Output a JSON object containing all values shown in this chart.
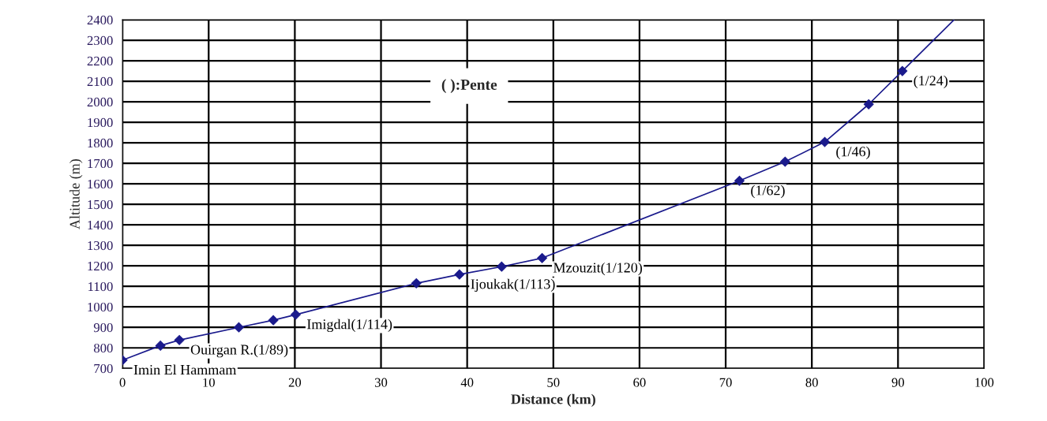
{
  "chart_data": {
    "type": "line",
    "xlabel": "Distance (km)",
    "ylabel": "Altitude (m)",
    "xlim": [
      0,
      100
    ],
    "xticks": [
      0,
      10,
      20,
      30,
      40,
      50,
      60,
      70,
      80,
      90,
      100
    ],
    "ylim": [
      700,
      2400
    ],
    "yticks": [
      700,
      800,
      900,
      1000,
      1100,
      1200,
      1300,
      1400,
      1500,
      1600,
      1700,
      1800,
      1900,
      2000,
      2100,
      2200,
      2300,
      2400
    ],
    "grid": true,
    "marker": "diamond",
    "line_style": "solid",
    "series": [
      {
        "color": "#1a1a8c",
        "x": [
          0,
          4.4,
          6.6,
          13.5,
          17.5,
          20.1,
          34.1,
          39.1,
          44,
          48.7,
          71.6,
          76.9,
          81.5,
          86.6,
          90.5
        ],
        "values": [
          740,
          811,
          838,
          900,
          935,
          962,
          1115,
          1158,
          1196,
          1238,
          1615,
          1708,
          1804,
          1988,
          2150
        ]
      },
      {
        "color": "#1a1a8c",
        "marker": "none",
        "x": [
          90.5,
          96.5
        ],
        "values": [
          2150,
          2400
        ]
      }
    ],
    "annotations": [
      "( ):Pente",
      {
        "text": "Imin El Hammam",
        "x": 0,
        "y": 740
      },
      {
        "text": "Ouirgan R.(1/89)",
        "x": 6.6,
        "y": 838
      },
      {
        "text": "Imigdal(1/114)",
        "x": 20.1,
        "y": 962
      },
      {
        "text": "Ijoukak(1/113)",
        "x": 39.1,
        "y": 1158
      },
      {
        "text": "Mzouzit(1/120)",
        "x": 48.7,
        "y": 1238
      },
      {
        "text": "(1/62)",
        "x": 71.6,
        "y": 1615
      },
      {
        "text": "(1/46)",
        "x": 81.5,
        "y": 1804
      },
      {
        "text": "(1/24)",
        "x": 90.5,
        "y": 2150
      }
    ]
  }
}
